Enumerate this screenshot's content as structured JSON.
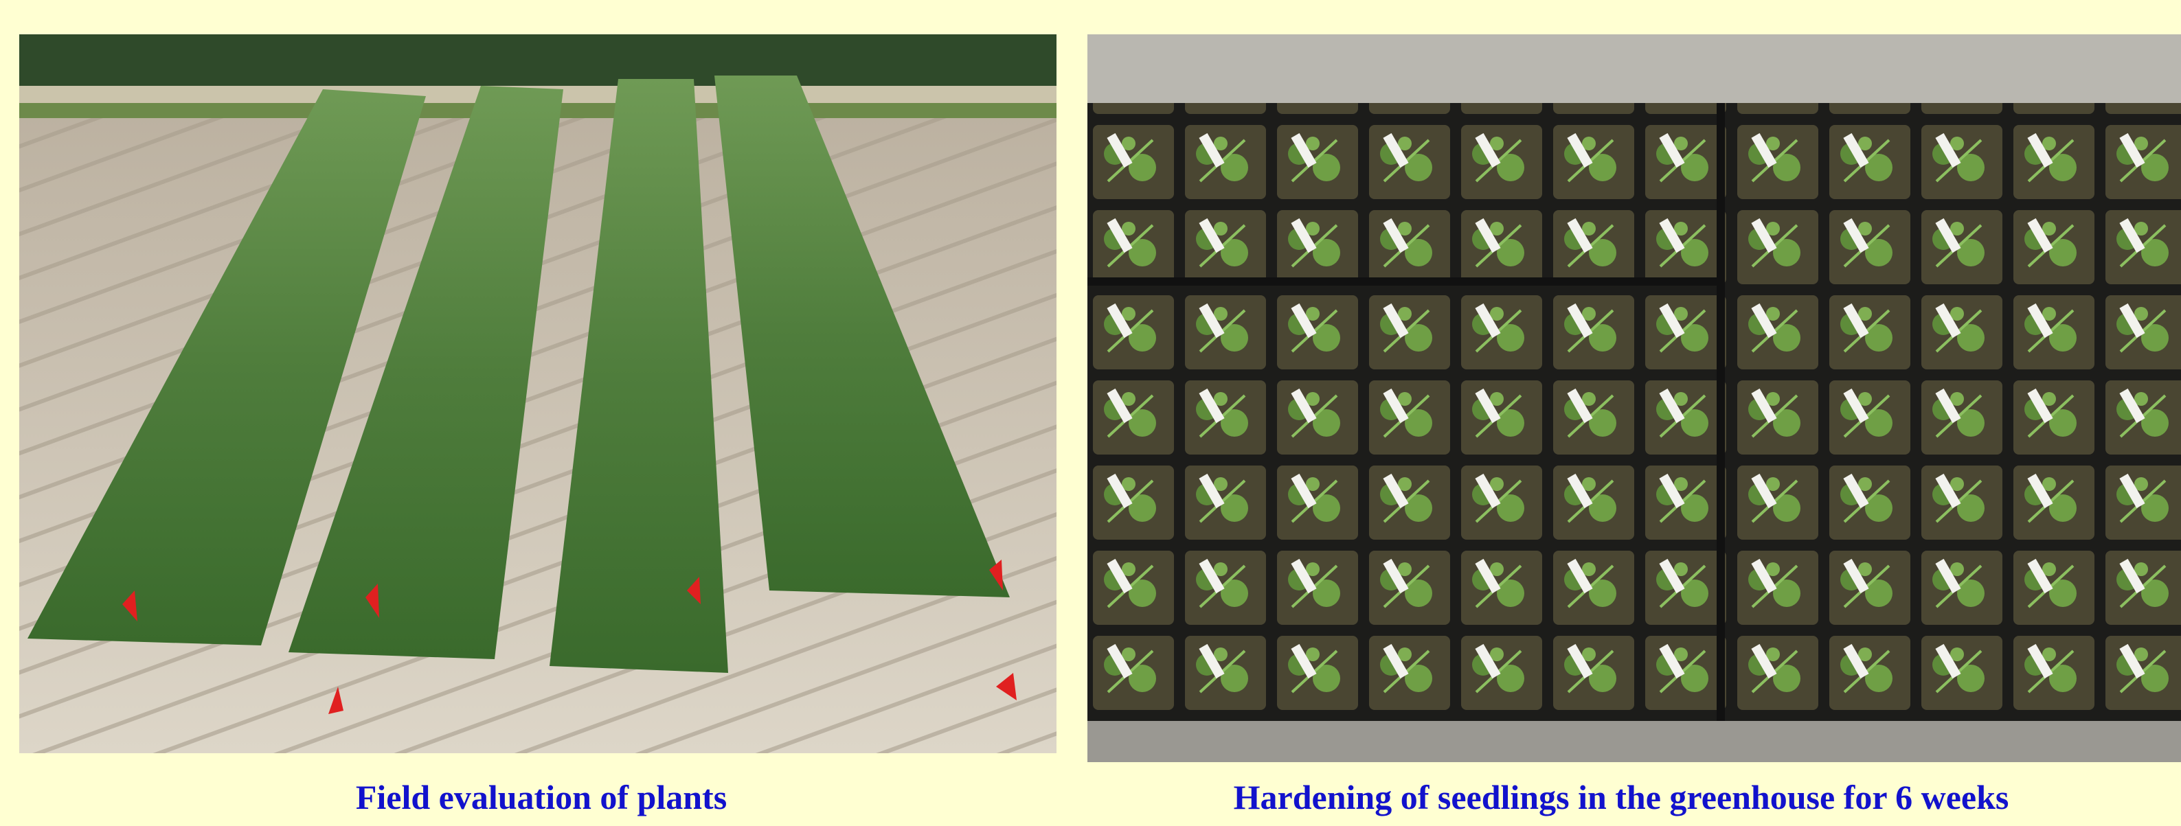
{
  "images": [
    {
      "caption": "Field evaluation of plants"
    },
    {
      "caption": "Hardening of seedlings in the greenhouse for 6 weeks"
    }
  ]
}
